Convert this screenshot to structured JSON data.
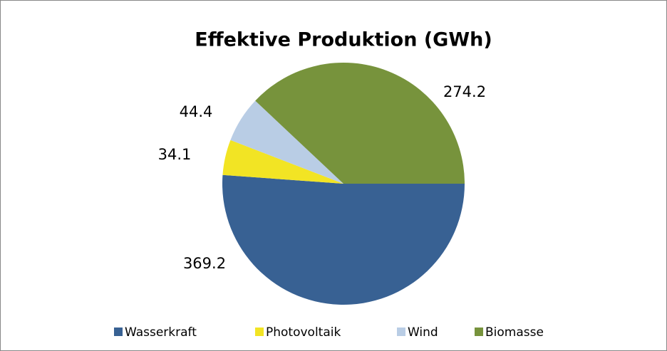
{
  "chart_data": {
    "type": "pie",
    "title": "Effektive Produktion (GWh)",
    "categories": [
      "Wasserkraft",
      "Photovoltaik",
      "Wind",
      "Biomasse"
    ],
    "values": [
      369.2,
      34.1,
      44.4,
      274.2
    ],
    "colors": [
      "#386193",
      "#f2e424",
      "#b9cde5",
      "#77933c"
    ],
    "legend": "bottom"
  }
}
